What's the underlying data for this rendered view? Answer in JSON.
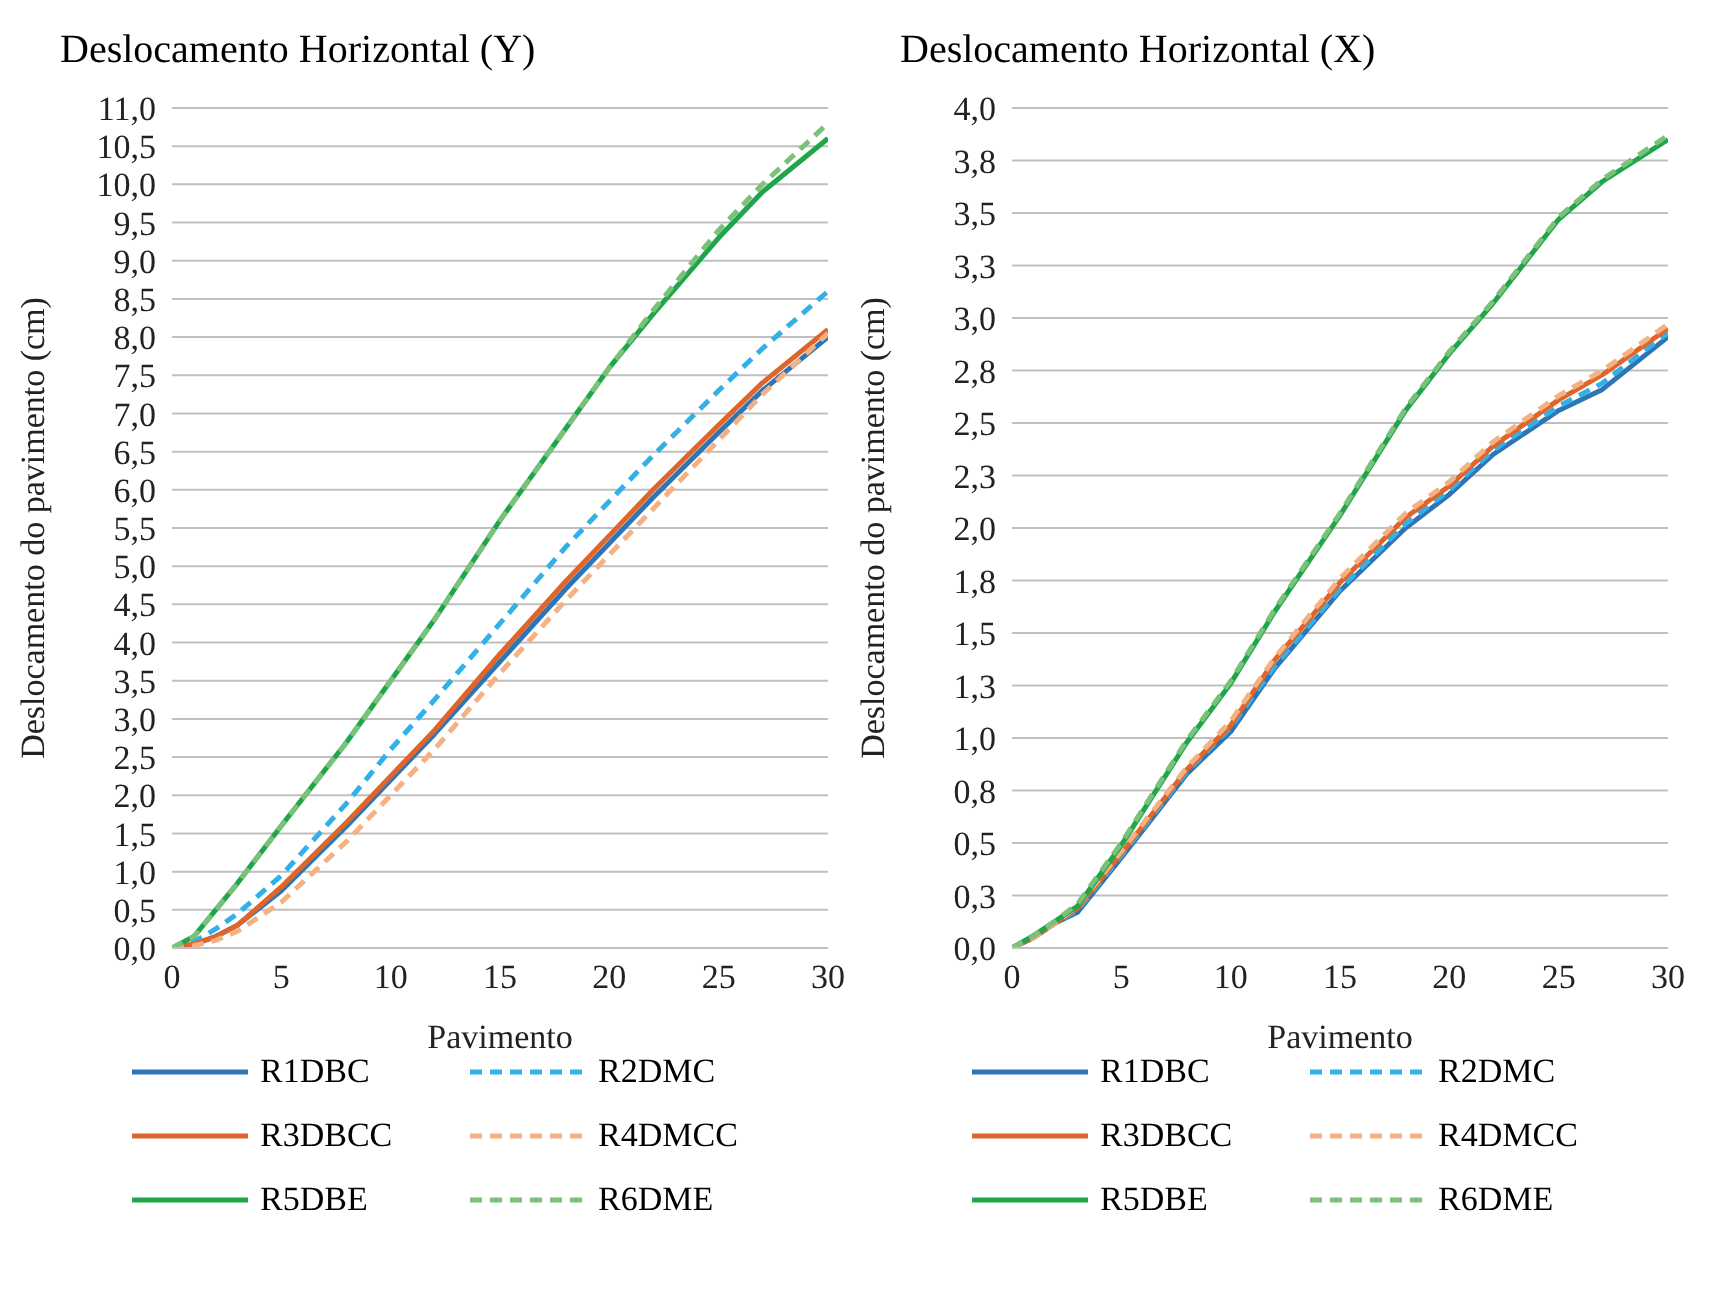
{
  "chart_data": [
    {
      "type": "line",
      "title": "Deslocamento Horizontal (Y)",
      "xlabel": "Pavimento",
      "ylabel": "Deslocamento do pavimento (cm)",
      "x": [
        0,
        1,
        2,
        3,
        5,
        8,
        10,
        12,
        15,
        18,
        20,
        22,
        25,
        27,
        30
      ],
      "xlim": [
        0,
        30
      ],
      "xticks": [
        0,
        5,
        10,
        15,
        20,
        25,
        30
      ],
      "ylim": [
        0,
        11
      ],
      "yticks": [
        {
          "value": 0,
          "label": "0,0"
        },
        {
          "value": 0.5,
          "label": "0,5"
        },
        {
          "value": 1,
          "label": "1,0"
        },
        {
          "value": 1.5,
          "label": "1,5"
        },
        {
          "value": 2,
          "label": "2,0"
        },
        {
          "value": 2.5,
          "label": "2,5"
        },
        {
          "value": 3,
          "label": "3,0"
        },
        {
          "value": 3.5,
          "label": "3,5"
        },
        {
          "value": 4,
          "label": "4,0"
        },
        {
          "value": 4.5,
          "label": "4,5"
        },
        {
          "value": 5,
          "label": "5,0"
        },
        {
          "value": 5.5,
          "label": "5,5"
        },
        {
          "value": 6,
          "label": "6,0"
        },
        {
          "value": 6.5,
          "label": "6,5"
        },
        {
          "value": 7,
          "label": "7,0"
        },
        {
          "value": 7.5,
          "label": "7,5"
        },
        {
          "value": 8,
          "label": "8,0"
        },
        {
          "value": 8.5,
          "label": "8,5"
        },
        {
          "value": 9,
          "label": "9,0"
        },
        {
          "value": 9.5,
          "label": "9,5"
        },
        {
          "value": 10,
          "label": "10,0"
        },
        {
          "value": 10.5,
          "label": "10,5"
        },
        {
          "value": 11,
          "label": "11,0"
        }
      ],
      "grid": "y",
      "legend": "bottom",
      "marker": "none",
      "series": [
        {
          "name": "R1DBC",
          "color": "#2e75b6",
          "line_style": "solid",
          "values": [
            0,
            0.05,
            0.15,
            0.3,
            0.75,
            1.6,
            2.2,
            2.8,
            3.75,
            4.7,
            5.3,
            5.9,
            6.75,
            7.3,
            8.0
          ]
        },
        {
          "name": "R2DMC",
          "color": "#33b0e8",
          "line_style": "dashed",
          "values": [
            0,
            0.08,
            0.25,
            0.45,
            0.95,
            1.9,
            2.6,
            3.25,
            4.25,
            5.25,
            5.85,
            6.45,
            7.3,
            7.85,
            8.6
          ]
        },
        {
          "name": "R3DBCC",
          "color": "#e0652a",
          "line_style": "solid",
          "values": [
            0,
            0.05,
            0.15,
            0.3,
            0.8,
            1.65,
            2.25,
            2.85,
            3.85,
            4.8,
            5.4,
            6.0,
            6.85,
            7.4,
            8.1
          ]
        },
        {
          "name": "R4DMCC",
          "color": "#f4b183",
          "line_style": "dashed",
          "values": [
            0,
            0.03,
            0.1,
            0.22,
            0.6,
            1.4,
            2.0,
            2.6,
            3.6,
            4.55,
            5.15,
            5.75,
            6.65,
            7.25,
            8.05
          ]
        },
        {
          "name": "R5DBE",
          "color": "#1fa64a",
          "line_style": "solid",
          "values": [
            0,
            0.15,
            0.5,
            0.85,
            1.6,
            2.7,
            3.5,
            4.3,
            5.6,
            6.8,
            7.6,
            8.3,
            9.3,
            9.9,
            10.6
          ]
        },
        {
          "name": "R6DME",
          "color": "#7ac27a",
          "line_style": "dashed",
          "values": [
            0,
            0.15,
            0.5,
            0.85,
            1.6,
            2.7,
            3.5,
            4.3,
            5.6,
            6.8,
            7.6,
            8.35,
            9.4,
            10.0,
            10.8
          ]
        }
      ]
    },
    {
      "type": "line",
      "title": "Deslocamento Horizontal (X)",
      "xlabel": "Pavimento",
      "ylabel": "Deslocamento do pavimento (cm)",
      "x": [
        0,
        1,
        2,
        3,
        5,
        8,
        10,
        12,
        15,
        18,
        20,
        22,
        25,
        27,
        30
      ],
      "xlim": [
        0,
        30
      ],
      "xticks": [
        0,
        5,
        10,
        15,
        20,
        25,
        30
      ],
      "ylim": [
        0,
        4
      ],
      "yticks": [
        {
          "value": 0,
          "label": "0,0"
        },
        {
          "value": 0.25,
          "label": "0,3"
        },
        {
          "value": 0.5,
          "label": "0,5"
        },
        {
          "value": 0.75,
          "label": "0,8"
        },
        {
          "value": 1,
          "label": "1,0"
        },
        {
          "value": 1.25,
          "label": "1,3"
        },
        {
          "value": 1.5,
          "label": "1,5"
        },
        {
          "value": 1.75,
          "label": "1,8"
        },
        {
          "value": 2,
          "label": "2,0"
        },
        {
          "value": 2.25,
          "label": "2,3"
        },
        {
          "value": 2.5,
          "label": "2,5"
        },
        {
          "value": 2.75,
          "label": "2,8"
        },
        {
          "value": 3,
          "label": "3,0"
        },
        {
          "value": 3.25,
          "label": "3,3"
        },
        {
          "value": 3.5,
          "label": "3,5"
        },
        {
          "value": 3.75,
          "label": "3,8"
        },
        {
          "value": 4,
          "label": "4,0"
        }
      ],
      "grid": "y",
      "legend": "bottom",
      "marker": "none",
      "series": [
        {
          "name": "R1DBC",
          "color": "#2e75b6",
          "line_style": "solid",
          "values": [
            0,
            0.05,
            0.12,
            0.17,
            0.43,
            0.83,
            1.03,
            1.33,
            1.7,
            2.0,
            2.16,
            2.35,
            2.56,
            2.66,
            2.91
          ]
        },
        {
          "name": "R2DMC",
          "color": "#33b0e8",
          "line_style": "dashed",
          "values": [
            0,
            0.05,
            0.12,
            0.18,
            0.44,
            0.84,
            1.05,
            1.34,
            1.71,
            2.02,
            2.18,
            2.37,
            2.58,
            2.69,
            2.93
          ]
        },
        {
          "name": "R3DBCC",
          "color": "#e0652a",
          "line_style": "solid",
          "values": [
            0,
            0.05,
            0.12,
            0.19,
            0.45,
            0.85,
            1.06,
            1.37,
            1.74,
            2.05,
            2.2,
            2.39,
            2.61,
            2.73,
            2.95
          ]
        },
        {
          "name": "R4DMCC",
          "color": "#f4b183",
          "line_style": "dashed",
          "values": [
            0,
            0.05,
            0.12,
            0.2,
            0.46,
            0.86,
            1.08,
            1.38,
            1.76,
            2.07,
            2.22,
            2.41,
            2.63,
            2.75,
            2.97
          ]
        },
        {
          "name": "R5DBE",
          "color": "#1fa64a",
          "line_style": "solid",
          "values": [
            0,
            0.06,
            0.13,
            0.2,
            0.49,
            0.98,
            1.26,
            1.6,
            2.06,
            2.56,
            2.83,
            3.07,
            3.47,
            3.65,
            3.85
          ]
        },
        {
          "name": "R6DME",
          "color": "#7ac27a",
          "line_style": "dashed",
          "values": [
            0,
            0.06,
            0.13,
            0.21,
            0.5,
            0.99,
            1.27,
            1.61,
            2.07,
            2.57,
            2.84,
            3.08,
            3.48,
            3.66,
            3.87
          ]
        }
      ]
    }
  ]
}
